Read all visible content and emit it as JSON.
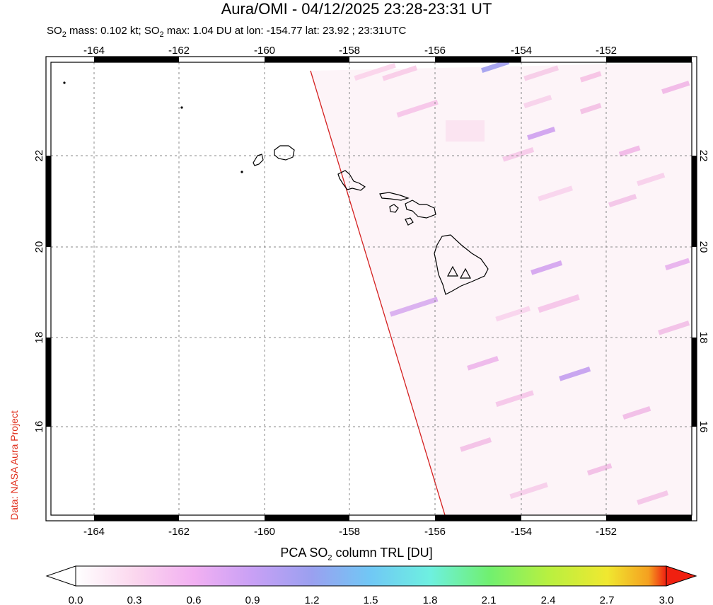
{
  "title": "Aura/OMI - 04/12/2025 23:28-23:31 UT",
  "subtitle": {
    "prefix": "SO",
    "sub1": "2",
    "mid": " mass: 0.102 kt; SO",
    "sub2": "2",
    "rest": " max: 1.04 DU at lon: -154.77 lat: 23.92 ; 23:31UTC"
  },
  "credit": "Data: NASA Aura Project",
  "map": {
    "lon_range": [
      -165.1,
      -150.1
    ],
    "lat_range": [
      14.0,
      24.1
    ],
    "lon_ticks": [
      "-164",
      "-162",
      "-160",
      "-158",
      "-156",
      "-154",
      "-152"
    ],
    "lat_ticks": [
      "16",
      "18",
      "20",
      "22"
    ],
    "grid": true,
    "volcano_markers": [
      {
        "lon": -155.45,
        "lat": 19.45
      },
      {
        "lon": -155.15,
        "lat": 19.4
      }
    ],
    "swath_edge_color": "#d42020"
  },
  "colorbar": {
    "title_prefix": "PCA SO",
    "title_sub": "2",
    "title_rest": " column TRL [DU]",
    "ticks": [
      "0.0",
      "0.3",
      "0.6",
      "0.9",
      "1.2",
      "1.5",
      "1.8",
      "2.1",
      "2.4",
      "2.7",
      "3.0"
    ],
    "colors": [
      "#ffffff",
      "#fbd7ee",
      "#f2b0f2",
      "#c8a0f5",
      "#9aa0f0",
      "#70c8f5",
      "#6ef0e0",
      "#70f070",
      "#b8f040",
      "#f0e830",
      "#f5a020",
      "#f02010"
    ]
  }
}
